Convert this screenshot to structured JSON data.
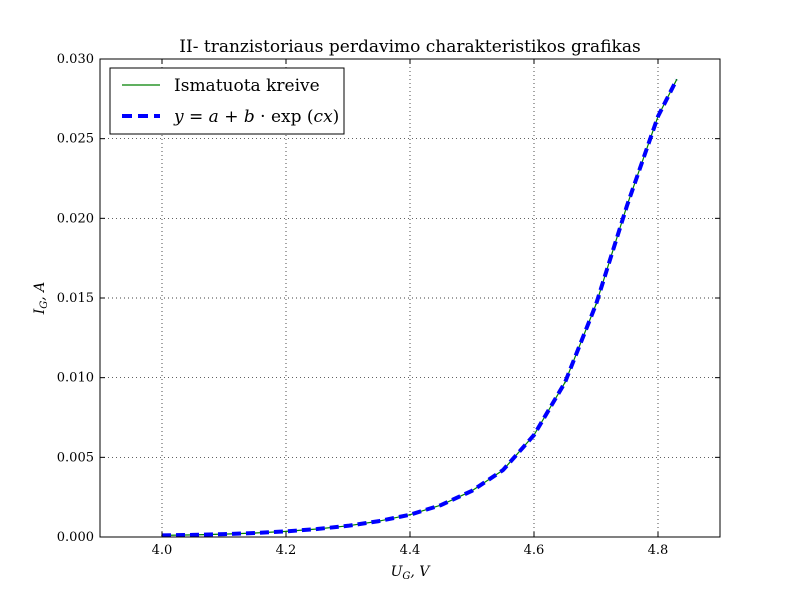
{
  "chart_data": {
    "type": "line",
    "title": "II- tranzistoriaus perdavimo charakteristikos grafikas",
    "xlabel": "U_G, V",
    "ylabel": "I_G, A",
    "xlim": [
      3.9,
      4.9
    ],
    "ylim": [
      0.0,
      0.03
    ],
    "x_ticks": [
      4.0,
      4.2,
      4.4,
      4.6,
      4.8
    ],
    "x_tick_labels": [
      "4.0",
      "4.2",
      "4.4",
      "4.6",
      "4.8"
    ],
    "y_ticks": [
      0.0,
      0.005,
      0.01,
      0.015,
      0.02,
      0.025,
      0.03
    ],
    "y_tick_labels": [
      "0.000",
      "0.005",
      "0.010",
      "0.015",
      "0.020",
      "0.025",
      "0.030"
    ],
    "grid": true,
    "legend_position": "top-left",
    "series": [
      {
        "name": "Ismatuota kreive",
        "style": "solid",
        "color": "#008000",
        "x": [
          4.0,
          4.05,
          4.1,
          4.15,
          4.2,
          4.25,
          4.3,
          4.35,
          4.4,
          4.45,
          4.5,
          4.55,
          4.6,
          4.65,
          4.7,
          4.75,
          4.8,
          4.83
        ],
        "y": [
          0.0001,
          0.00013,
          0.00018,
          0.00025,
          0.00035,
          0.0005,
          0.0007,
          0.001,
          0.0014,
          0.002,
          0.0029,
          0.0042,
          0.0064,
          0.0097,
          0.0146,
          0.0208,
          0.0264,
          0.0287
        ]
      },
      {
        "name": "y = a + b · exp (cx)",
        "style": "dashed",
        "color": "#0000ff",
        "x": [
          4.0,
          4.05,
          4.1,
          4.15,
          4.2,
          4.25,
          4.3,
          4.35,
          4.4,
          4.45,
          4.5,
          4.55,
          4.6,
          4.65,
          4.7,
          4.75,
          4.8,
          4.83
        ],
        "y": [
          0.0001,
          0.00013,
          0.00018,
          0.00025,
          0.00035,
          0.0005,
          0.0007,
          0.001,
          0.0014,
          0.002,
          0.0029,
          0.0042,
          0.0064,
          0.0097,
          0.0146,
          0.0208,
          0.0264,
          0.0287
        ]
      }
    ]
  },
  "legend": {
    "items": [
      {
        "label": "Ismatuota kreive"
      },
      {
        "label_parts": [
          "y",
          " = ",
          "a",
          " + ",
          "b",
          " · exp (",
          "cx",
          ")"
        ]
      }
    ]
  },
  "labels": {
    "xlabel_main": "U",
    "xlabel_sub": "G",
    "xlabel_tail": ", V",
    "ylabel_main": "I",
    "ylabel_sub": "G",
    "ylabel_tail": ", A"
  },
  "colors": {
    "measured": "#008000",
    "fit": "#0000ff",
    "axes": "#000000",
    "grid": "#000000"
  }
}
